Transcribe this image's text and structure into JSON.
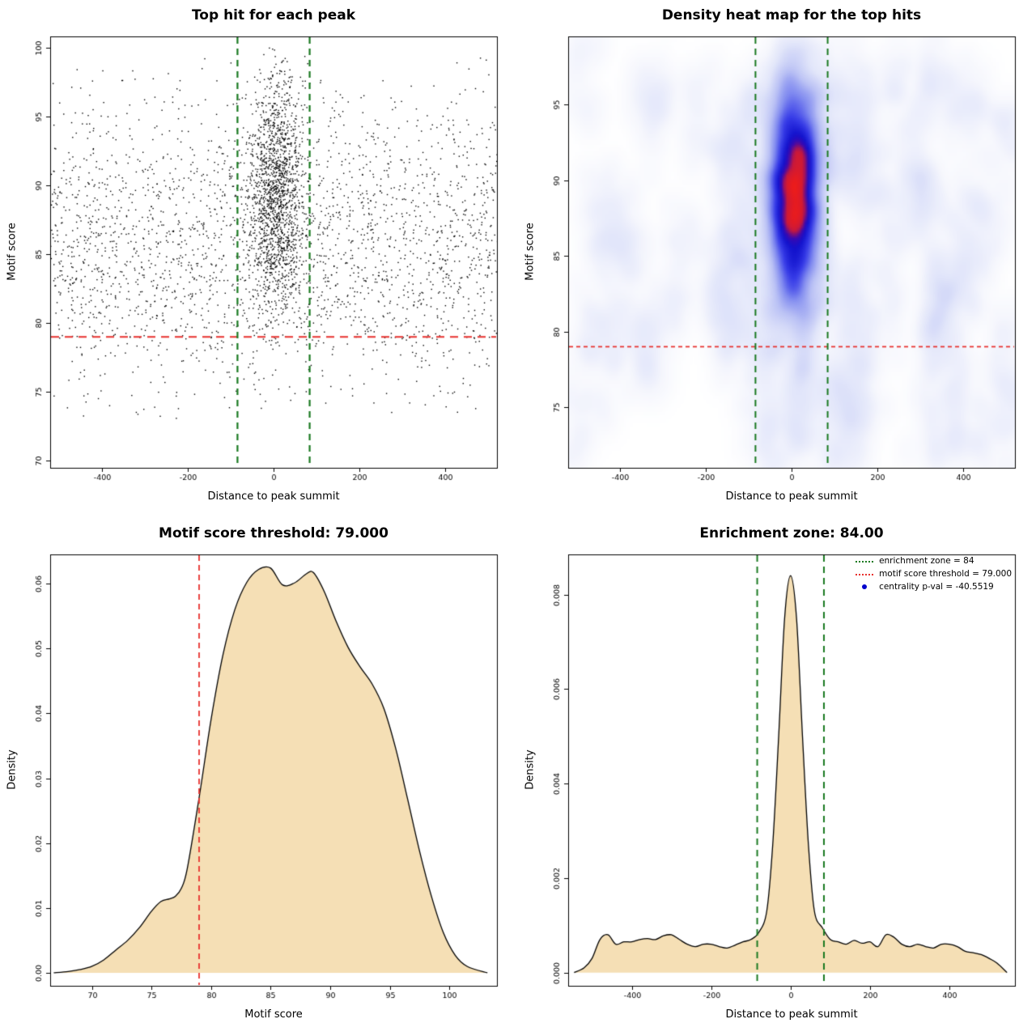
{
  "figure": {
    "background": "#ffffff"
  },
  "colors": {
    "threshold_red": "#e8312e",
    "zone_green": "#1b7a22",
    "density_fill": "#f5dfb5",
    "curve_stroke": "#000000",
    "pval_blue": "#0000cc",
    "point_black": "#000000"
  },
  "chart_data": [
    {
      "id": "top-hit-scatter",
      "type": "scatter",
      "title": "Top hit for each peak",
      "xlabel": "Distance to peak summit",
      "ylabel": "Motif score",
      "xlim": [
        -520,
        520
      ],
      "ylim": [
        69.5,
        100.8
      ],
      "xticks": {
        "values": [
          -400,
          -200,
          0,
          200,
          400
        ],
        "labels": [
          "-400",
          "-200",
          "0",
          "200",
          "400"
        ]
      },
      "yticks": {
        "values": [
          70,
          75,
          80,
          85,
          90,
          95,
          100
        ],
        "labels": [
          "70",
          "75",
          "80",
          "85",
          "90",
          "95",
          "100"
        ]
      },
      "motif_score_threshold": 79,
      "enrichment_zone": [
        -84,
        84
      ],
      "generator": {
        "seed": 42,
        "background_n": 2500,
        "background_y_mean": 86,
        "background_y_sd": 5.3,
        "background_y_min": 72.5,
        "background_y_max": 99.3,
        "cluster_n": 1500,
        "cluster_x_mean": 5,
        "cluster_x_sd": 31,
        "cluster_y_mean": 89.3,
        "cluster_y_sd": 4.4,
        "cluster_y_min": 74,
        "cluster_y_max": 100
      }
    },
    {
      "id": "top-hit-heatmap",
      "type": "heatmap",
      "title": "Density heat map for the top hits",
      "xlabel": "Distance to peak summit",
      "ylabel": "Motif score",
      "xlim": [
        -520,
        520
      ],
      "ylim": [
        71,
        99.5
      ],
      "xticks": {
        "values": [
          -400,
          -200,
          0,
          200,
          400
        ],
        "labels": [
          "-400",
          "-200",
          "0",
          "200",
          "400"
        ]
      },
      "yticks": {
        "values": [
          75,
          80,
          85,
          90,
          95
        ],
        "labels": [
          "75",
          "80",
          "85",
          "90",
          "95"
        ]
      },
      "motif_score_threshold": 79,
      "enrichment_zone": [
        -84,
        84
      ],
      "hotspot": {
        "center_x": 0,
        "center_y": 90,
        "x_sd": 33,
        "y_sd": 4.2,
        "core_color": "red",
        "ring_color": "blue",
        "background": "white with faint blue patches"
      },
      "generator": {
        "seed": 7,
        "background_clusters": 90,
        "cluster_points": 16,
        "bg_sigma_x": 20,
        "bg_sigma_y": 1.7,
        "bg_y_min": 72.5,
        "bg_y_max": 97.5,
        "central_n": 1700,
        "central_x_mean": 3,
        "central_x_sd": 33,
        "central_y_mean": 89.5,
        "central_y_sd": 4.2
      }
    },
    {
      "id": "motif-score-density",
      "type": "area",
      "title": "Motif score threshold: 79.000",
      "xlabel": "Motif score",
      "ylabel": "Density",
      "xlim": [
        66.5,
        104
      ],
      "ylim": [
        -0.002,
        0.0645
      ],
      "xticks": {
        "values": [
          70,
          75,
          80,
          85,
          90,
          95,
          100
        ],
        "labels": [
          "70",
          "75",
          "80",
          "85",
          "90",
          "95",
          "100"
        ]
      },
      "yticks": {
        "values": [
          0,
          0.01,
          0.02,
          0.03,
          0.04,
          0.05,
          0.06
        ],
        "labels": [
          "0.00",
          "0.01",
          "0.02",
          "0.03",
          "0.04",
          "0.05",
          "0.06"
        ]
      },
      "threshold_x": 79,
      "curve": {
        "x": [
          66.8,
          68,
          69,
          70,
          71,
          72,
          73,
          74,
          75,
          75.8,
          76.5,
          77,
          77.5,
          78,
          79,
          80,
          81,
          82,
          83,
          84,
          85,
          86,
          87,
          88,
          88.6,
          89.5,
          90.5,
          91.5,
          92.5,
          93.5,
          94.5,
          95.5,
          96.5,
          97.5,
          98.5,
          99.5,
          100.5,
          101.5,
          103.2
        ],
        "y": [
          0,
          0.0002,
          0.0005,
          0.001,
          0.002,
          0.0035,
          0.005,
          0.007,
          0.0095,
          0.011,
          0.0114,
          0.0118,
          0.013,
          0.016,
          0.027,
          0.039,
          0.049,
          0.056,
          0.0602,
          0.0622,
          0.0624,
          0.0598,
          0.0601,
          0.0615,
          0.0617,
          0.0588,
          0.0542,
          0.0502,
          0.0472,
          0.0446,
          0.0408,
          0.0346,
          0.0268,
          0.0188,
          0.0118,
          0.0062,
          0.0027,
          0.001,
          0
        ]
      }
    },
    {
      "id": "distance-density",
      "type": "area",
      "title": "Enrichment zone: 84.00",
      "xlabel": "Distance to peak summit",
      "ylabel": "Density",
      "xlim": [
        -560,
        565
      ],
      "ylim": [
        -0.00028,
        0.00885
      ],
      "xticks": {
        "values": [
          -400,
          -200,
          0,
          200,
          400
        ],
        "labels": [
          "-400",
          "-200",
          "0",
          "200",
          "400"
        ]
      },
      "yticks": {
        "values": [
          0,
          0.002,
          0.004,
          0.006,
          0.008
        ],
        "labels": [
          "0.000",
          "0.002",
          "0.004",
          "0.006",
          "0.008"
        ]
      },
      "zone": [
        -84,
        84
      ],
      "legend": [
        {
          "symbol": "dotted-line",
          "color": "#1b7a22",
          "label": "enrichment zone = 84"
        },
        {
          "symbol": "dotted-line",
          "color": "#e8312e",
          "label": "motif score threshold = 79.000"
        },
        {
          "symbol": "dot",
          "color": "#0000cc",
          "label": "centrality p-val = -40.5519"
        }
      ],
      "curve": {
        "x": [
          -545,
          -520,
          -500,
          -480,
          -460,
          -440,
          -420,
          -400,
          -380,
          -360,
          -340,
          -320,
          -300,
          -280,
          -260,
          -240,
          -220,
          -200,
          -180,
          -160,
          -140,
          -120,
          -100,
          -80,
          -60,
          -45,
          -30,
          -15,
          0,
          15,
          30,
          45,
          60,
          80,
          100,
          120,
          140,
          160,
          180,
          200,
          220,
          240,
          260,
          280,
          300,
          320,
          340,
          360,
          380,
          400,
          420,
          440,
          460,
          480,
          500,
          520,
          545
        ],
        "y": [
          0,
          0.0001,
          0.0003,
          0.0007,
          0.0008,
          0.0006,
          0.00065,
          0.00065,
          0.0007,
          0.00072,
          0.0007,
          0.00078,
          0.0008,
          0.0007,
          0.0006,
          0.00055,
          0.0006,
          0.0006,
          0.00055,
          0.00052,
          0.00058,
          0.00065,
          0.0007,
          0.00085,
          0.0013,
          0.0027,
          0.005,
          0.0075,
          0.0084,
          0.0075,
          0.005,
          0.0027,
          0.0013,
          0.00095,
          0.0007,
          0.00065,
          0.0006,
          0.00068,
          0.00062,
          0.00065,
          0.00055,
          0.0008,
          0.00075,
          0.0006,
          0.00055,
          0.0006,
          0.00055,
          0.00052,
          0.0006,
          0.0006,
          0.00055,
          0.00045,
          0.00042,
          0.00038,
          0.0003,
          0.0002,
          0
        ]
      }
    }
  ]
}
